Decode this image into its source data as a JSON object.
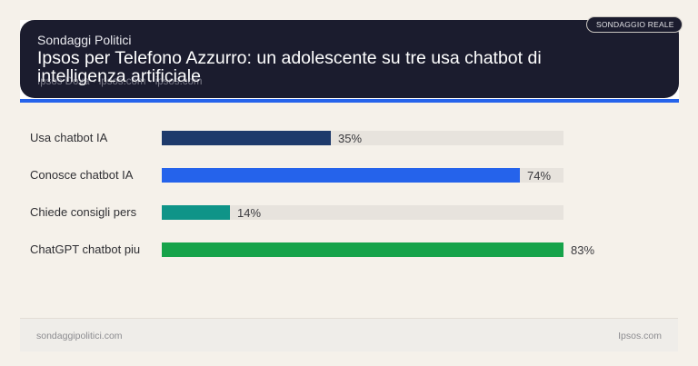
{
  "header": {
    "kicker": "Sondaggi Politici",
    "title": "Ipsos per Telefono Azzurro: un adolescente su tre usa chatbot di intelligenza artificiale",
    "source": "Ipsos Doxa · ipsos.com · ipsos.com",
    "badge": "SONDAGGIO REALE"
  },
  "colors": {
    "header_bg": "#1b1c2e",
    "accent": "#2563eb",
    "track": "#e7e3dd",
    "page_bg": "#f5f1ea"
  },
  "chart_data": {
    "type": "bar",
    "orientation": "horizontal",
    "title": "Ipsos per Telefono Azzurro: un adolescente su tre usa chatbot di intelligenza artificiale",
    "xlabel": "",
    "ylabel": "",
    "unit": "%",
    "scale_max": 83,
    "grid": false,
    "legend": "none",
    "categories": [
      "Usa chatbot IA",
      "Conosce chatbot IA",
      "Chiede consigli pers",
      "ChatGPT chatbot piu"
    ],
    "values": [
      35,
      74,
      14,
      83
    ],
    "value_labels": [
      "35%",
      "74%",
      "14%",
      "83%"
    ],
    "bar_colors": [
      "#1e3a6b",
      "#2563eb",
      "#0f9488",
      "#16a34a"
    ]
  },
  "footer": {
    "left": "sondaggipolitici.com",
    "right": "Ipsos.com"
  }
}
